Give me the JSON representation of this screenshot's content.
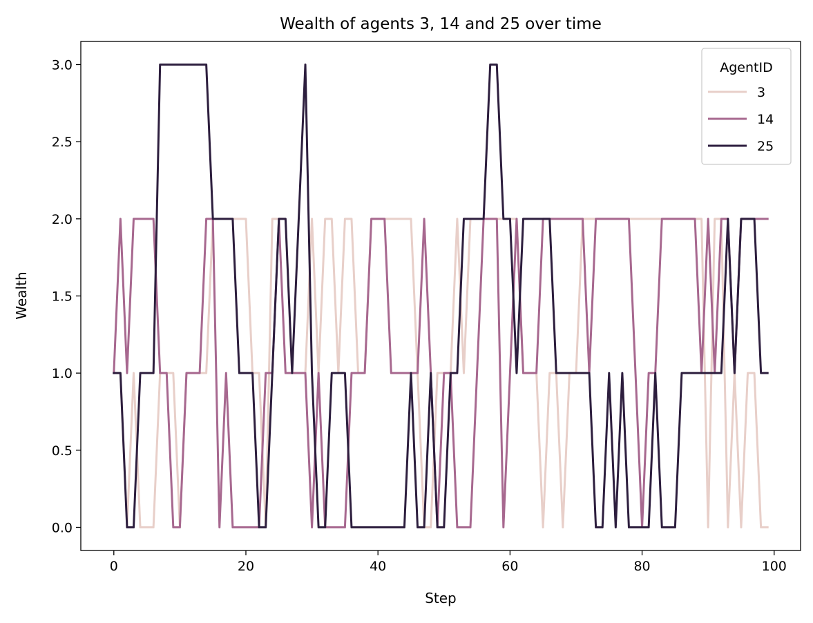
{
  "chart_data": {
    "type": "line",
    "title": "Wealth of agents 3, 14 and 25 over time",
    "xlabel": "Step",
    "ylabel": "Wealth",
    "xlim": [
      -5,
      104
    ],
    "ylim": [
      -0.15,
      3.15
    ],
    "xticks": [
      0,
      20,
      40,
      60,
      80,
      100
    ],
    "xtick_labels": [
      "0",
      "20",
      "40",
      "60",
      "80",
      "100"
    ],
    "yticks": [
      0.0,
      0.5,
      1.0,
      1.5,
      2.0,
      2.5,
      3.0
    ],
    "ytick_labels": [
      "0.0",
      "0.5",
      "1.0",
      "1.5",
      "2.0",
      "2.5",
      "3.0"
    ],
    "grid": false,
    "legend": {
      "title": "AgentID",
      "position": "top-right"
    },
    "series": [
      {
        "name": "3",
        "color": "#e8cfc9",
        "values": [
          1,
          1,
          0,
          1,
          0,
          0,
          0,
          1,
          1,
          1,
          0,
          1,
          1,
          1,
          1,
          2,
          2,
          2,
          2,
          2,
          2,
          1,
          1,
          0,
          2,
          2,
          2,
          1,
          1,
          1,
          2,
          1,
          2,
          2,
          1,
          2,
          2,
          1,
          1,
          2,
          2,
          2,
          2,
          2,
          2,
          2,
          1,
          0,
          0,
          1,
          1,
          1,
          2,
          1,
          2,
          2,
          2,
          2,
          2,
          2,
          2,
          2,
          1,
          1,
          1,
          0,
          1,
          1,
          0,
          1,
          1,
          2,
          2,
          2,
          2,
          2,
          2,
          2,
          2,
          2,
          2,
          2,
          2,
          2,
          2,
          2,
          2,
          2,
          2,
          2,
          0,
          2,
          2,
          0,
          1,
          0,
          1,
          1,
          0,
          0
        ]
      },
      {
        "name": "14",
        "color": "#a7688f",
        "values": [
          1,
          2,
          1,
          2,
          2,
          2,
          2,
          1,
          1,
          0,
          0,
          1,
          1,
          1,
          2,
          2,
          0,
          1,
          0,
          0,
          0,
          0,
          0,
          1,
          1,
          2,
          1,
          1,
          1,
          1,
          0,
          1,
          0,
          0,
          0,
          0,
          1,
          1,
          1,
          2,
          2,
          2,
          1,
          1,
          1,
          1,
          1,
          2,
          1,
          0,
          1,
          1,
          0,
          0,
          0,
          1,
          2,
          2,
          2,
          0,
          1,
          2,
          1,
          1,
          1,
          2,
          2,
          2,
          2,
          2,
          2,
          2,
          1,
          2,
          2,
          2,
          2,
          2,
          2,
          1,
          0,
          1,
          1,
          2,
          2,
          2,
          2,
          2,
          2,
          1,
          2,
          1,
          2,
          2,
          1,
          2,
          2,
          2,
          2,
          2
        ]
      },
      {
        "name": "25",
        "color": "#2d1e3e",
        "values": [
          1,
          1,
          0,
          0,
          1,
          1,
          1,
          3,
          3,
          3,
          3,
          3,
          3,
          3,
          3,
          2,
          2,
          2,
          2,
          1,
          1,
          1,
          0,
          0,
          1,
          2,
          2,
          1,
          2,
          3,
          1,
          0,
          0,
          1,
          1,
          1,
          0,
          0,
          0,
          0,
          0,
          0,
          0,
          0,
          0,
          1,
          0,
          0,
          1,
          0,
          0,
          1,
          1,
          2,
          2,
          2,
          2,
          3,
          3,
          2,
          2,
          1,
          2,
          2,
          2,
          2,
          2,
          1,
          1,
          1,
          1,
          1,
          1,
          0,
          0,
          1,
          0,
          1,
          0,
          0,
          0,
          0,
          1,
          0,
          0,
          0,
          1,
          1,
          1,
          1,
          1,
          1,
          1,
          2,
          1,
          2,
          2,
          2,
          1,
          1
        ]
      }
    ]
  }
}
